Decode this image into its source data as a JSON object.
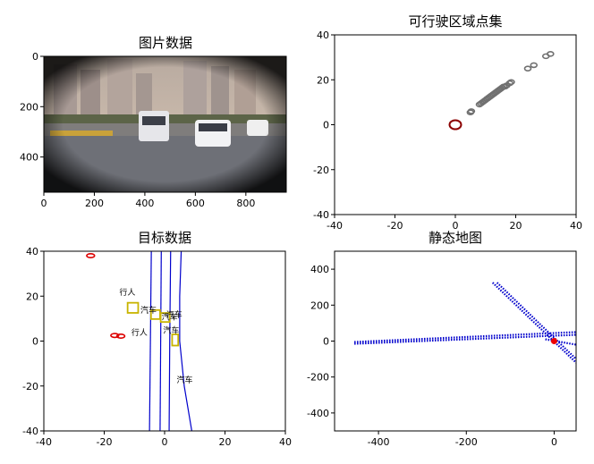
{
  "figure": {
    "background": "#ffffff"
  },
  "chart_data": [
    {
      "type": "image",
      "title": "图片数据",
      "xlim": [
        0,
        960
      ],
      "ylim": [
        540,
        0
      ],
      "xticks": [
        0,
        200,
        400,
        600,
        800
      ],
      "yticks": [
        0,
        200,
        400
      ],
      "image_description_elements": {
        "sky_color": "#c9b7a6",
        "road_color": "#6f7178",
        "vignette_color": "#1a1a1e"
      }
    },
    {
      "type": "scatter",
      "title": "可行驶区域点集",
      "xlim": [
        -40,
        40
      ],
      "ylim": [
        -40,
        40
      ],
      "xticks": [
        -40,
        -20,
        0,
        20,
        40
      ],
      "yticks": [
        -40,
        -20,
        0,
        20,
        40
      ],
      "ego": {
        "x": 0,
        "y": 0,
        "color": "#8b0000"
      },
      "point_color": "#707070",
      "points": [
        [
          5,
          5.5
        ],
        [
          5.3,
          6
        ],
        [
          8,
          9
        ],
        [
          8.5,
          9.5
        ],
        [
          9,
          10
        ],
        [
          9.5,
          10.5
        ],
        [
          10,
          11
        ],
        [
          10.5,
          11.5
        ],
        [
          11,
          12
        ],
        [
          11.5,
          12.5
        ],
        [
          12,
          13
        ],
        [
          12.5,
          13.5
        ],
        [
          13,
          14
        ],
        [
          13.5,
          14.5
        ],
        [
          14,
          15
        ],
        [
          14.5,
          15.5
        ],
        [
          15,
          16
        ],
        [
          15.5,
          16.5
        ],
        [
          16,
          17
        ],
        [
          16.5,
          17
        ],
        [
          17,
          17.5
        ],
        [
          18,
          18.5
        ],
        [
          18.5,
          19
        ],
        [
          24,
          25
        ],
        [
          26,
          26.5
        ],
        [
          30,
          30.5
        ],
        [
          31.5,
          31.5
        ]
      ]
    },
    {
      "type": "scatter",
      "title": "目标数据",
      "xlim": [
        -40,
        40
      ],
      "ylim": [
        -40,
        40
      ],
      "xticks": [
        -40,
        -20,
        0,
        20,
        40
      ],
      "yticks": [
        -40,
        -20,
        0,
        20,
        40
      ],
      "lane_color": "#0000cc",
      "lanes": [
        [
          [
            -5,
            -40
          ],
          [
            -4.7,
            0
          ],
          [
            -4.4,
            40
          ]
        ],
        [
          [
            -1.5,
            -40
          ],
          [
            -1.3,
            0
          ],
          [
            -1.1,
            40
          ]
        ],
        [
          [
            1.5,
            -40
          ],
          [
            1.7,
            0
          ],
          [
            2,
            40
          ]
        ],
        [
          [
            9,
            -40
          ],
          [
            6.5,
            -20
          ],
          [
            5,
            0
          ],
          [
            5,
            20
          ],
          [
            5.5,
            40
          ]
        ]
      ],
      "red_objects": [
        {
          "x": -24.5,
          "y": 38,
          "w": 2,
          "h": 1.5
        },
        {
          "x": -16.5,
          "y": 2.5,
          "w": 2,
          "h": 1.5
        },
        {
          "x": -14.5,
          "y": 2.2,
          "w": 2,
          "h": 1.5
        }
      ],
      "red_color": "#dd0000",
      "yellow_color": "#c8b400",
      "yellow_objects": [
        {
          "x": -10.5,
          "y": 14.8,
          "w": 3.5,
          "h": 4.5
        },
        {
          "x": -3,
          "y": 11.8,
          "w": 3,
          "h": 4
        },
        {
          "x": 0.2,
          "y": 10.5,
          "w": 3,
          "h": 4
        },
        {
          "x": 3.5,
          "y": 0.5,
          "w": 2,
          "h": 5
        }
      ],
      "annotations": [
        {
          "text": "行人",
          "x": -15,
          "y": 20.5
        },
        {
          "text": "汽车",
          "x": -8,
          "y": 12.5
        },
        {
          "text": "汽车",
          "x": -1,
          "y": 9.5
        },
        {
          "text": "汽车",
          "x": 0.5,
          "y": 10.5
        },
        {
          "text": "汽车",
          "x": -0.5,
          "y": 3.5
        },
        {
          "text": "行人",
          "x": -11,
          "y": 2.5
        },
        {
          "text": "汽车",
          "x": 4,
          "y": -18.5
        }
      ]
    },
    {
      "type": "scatter",
      "title": "静态地图",
      "xlim": [
        -500,
        50
      ],
      "ylim": [
        -500,
        500
      ],
      "xticks": [
        -400,
        -200,
        0
      ],
      "yticks": [
        -400,
        -200,
        0,
        200,
        400
      ],
      "map_color": "#0000cc",
      "ego_color": "#ee0000",
      "roads": [
        {
          "from": [
            -455,
            -5
          ],
          "to": [
            50,
            50
          ]
        },
        {
          "from": [
            -455,
            -15
          ],
          "to": [
            50,
            35
          ]
        },
        {
          "from": [
            -140,
            325
          ],
          "to": [
            50,
            -120
          ]
        },
        {
          "from": [
            -130,
            325
          ],
          "to": [
            50,
            -100
          ]
        },
        {
          "from": [
            -20,
            10
          ],
          "to": [
            50,
            -20
          ]
        }
      ],
      "ego": {
        "x": 0,
        "y": 0
      }
    }
  ]
}
